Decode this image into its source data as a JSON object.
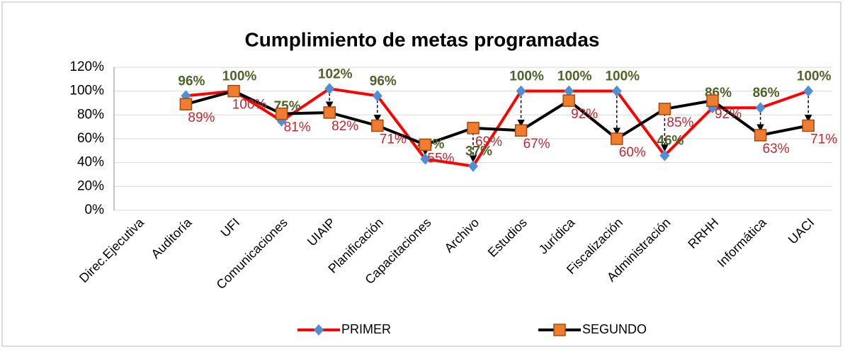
{
  "chart_data": {
    "type": "line",
    "title": "Cumplimiento de metas programadas",
    "categories": [
      "Direc.Ejecutiva",
      "Auditoría",
      "UFI",
      "Comunicaciones",
      "UIAIP",
      "Planificación",
      "Capacitaciones",
      "Archivo",
      "Estudios",
      "Jurídica",
      "Fiscalización",
      "Administración",
      "RRHH",
      "Informática",
      "UACI"
    ],
    "series": [
      {
        "name": "PRIMER",
        "color": "#ff0000",
        "marker_color": "#4f8fd6",
        "label_color": "#4f6228",
        "values": [
          null,
          96,
          100,
          75,
          102,
          96,
          43,
          37,
          100,
          100,
          100,
          46,
          86,
          86,
          100
        ],
        "value_labels": [
          null,
          "96%",
          "100%",
          "75%",
          "102%",
          "96%",
          "43%",
          "37%",
          "100%",
          "100%",
          "100%",
          "46%",
          "86%",
          "86%",
          "100%"
        ]
      },
      {
        "name": "SEGUNDO",
        "color": "#000000",
        "marker_color": "#f07c30",
        "label_color": "#c0282d",
        "values": [
          null,
          89,
          100,
          81,
          82,
          71,
          55,
          69,
          67,
          92,
          60,
          85,
          92,
          63,
          71
        ],
        "value_labels": [
          null,
          "89%",
          "100%",
          "81%",
          "82%",
          "71%",
          "55%",
          "69%",
          "67%",
          "92%",
          "60%",
          "85%",
          "92%",
          "63%",
          "71%"
        ]
      }
    ],
    "ylim": [
      0,
      120
    ],
    "yticks": [
      {
        "value": 0,
        "label": "0%"
      },
      {
        "value": 20,
        "label": "20%"
      },
      {
        "value": 40,
        "label": "40%"
      },
      {
        "value": 60,
        "label": "60%"
      },
      {
        "value": 80,
        "label": "80%"
      },
      {
        "value": 100,
        "label": "100%"
      },
      {
        "value": 120,
        "label": "120%"
      }
    ],
    "grid": true
  }
}
